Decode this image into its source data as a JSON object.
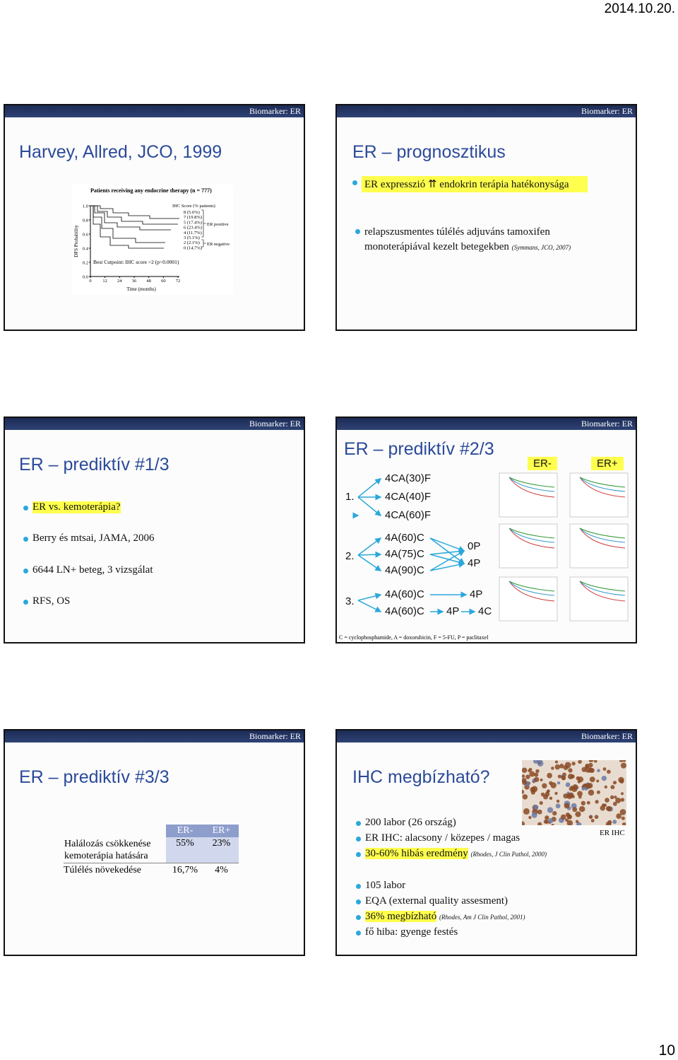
{
  "header": {
    "date": "2014.10.20."
  },
  "slides": [
    {
      "tag": "Biomarker: ER",
      "title": "Harvey, Allred, JCO, 1999",
      "figure": {
        "title": "Patients receiving any endocrine therapy (n = 777)",
        "legend_title": "IHC Score (% patients)",
        "legend": [
          "8 (5.6%)",
          "7 (19.8%)",
          "5 (17.4%)",
          "6 (23.4%)",
          "4 (11.7%)",
          "3 (5.1%)",
          "2 (2.1%)",
          "0 (14.7%)"
        ],
        "groups": [
          "ER positive",
          "ER negative"
        ],
        "y_label": "DFS Probability",
        "x_label": "Time (months)",
        "y_ticks": [
          "1.0",
          "0.8",
          "0.6",
          "0.4",
          "0.2",
          "0.0"
        ],
        "x_ticks": [
          "0",
          "12",
          "24",
          "36",
          "48",
          "60",
          "72"
        ],
        "note": "Best Cutpoint: IHC score >2 (p<0.0001)"
      }
    },
    {
      "tag": "Biomarker: ER",
      "title": "ER – prognosztikus",
      "bullets": [
        {
          "text": "ER expresszió ⇈ endokrin terápia hatékonysága"
        },
        {
          "text": "relapszusmentes túlélés adjuváns tamoxifen monoterápiával kezelt betegekben",
          "cite": "(Symmans, JCO, 2007)"
        }
      ]
    },
    {
      "tag": "Biomarker: ER",
      "title": "ER – prediktív #1/3",
      "bullets": [
        "ER vs. kemoterápia?",
        "Berry és mtsai, JAMA, 2006",
        "6644 LN+ beteg, 3 vizsgálat",
        "RFS, OS"
      ]
    },
    {
      "tag": "Biomarker: ER",
      "title": "ER – prediktív #2/3",
      "trials": [
        {
          "num": "1.",
          "arms": [
            "4CA(30)F",
            "4CA(40)F",
            "4CA(60)F"
          ]
        },
        {
          "num": "2.",
          "arms": [
            "4A(60)C",
            "4A(75)C",
            "4A(90)C"
          ],
          "then": [
            "0P",
            "4P"
          ]
        },
        {
          "num": "3.",
          "arms": [
            "4A(60)C",
            "4A(60)C"
          ],
          "seq": [
            "4P",
            "4P",
            "4C"
          ]
        }
      ],
      "labels": [
        "ER-",
        "ER+"
      ],
      "footnote": "C = cyclophosphamide, A = doxorubicin, F = 5-FU, P = paclitaxel"
    },
    {
      "tag": "Biomarker: ER",
      "title": "ER – prediktív #3/3",
      "table": {
        "header": [
          "ER-",
          "ER+"
        ],
        "rows": [
          [
            "Halálozás csökkenése kemoterápia hatására",
            "55%",
            "23%"
          ],
          [
            "Túlélés növekedése",
            "16,7%",
            "4%"
          ]
        ]
      }
    },
    {
      "tag": "Biomarker: ER",
      "title": "IHC megbízható?",
      "image_label": "ER IHC",
      "bullets": [
        {
          "text": "200 labor (26 ország)"
        },
        {
          "text": "ER IHC: alacsony / közepes / magas"
        },
        {
          "text": "30-60% hibás eredmény",
          "cite": "(Rhodes, J Clin Pathol, 2000)"
        },
        {
          "text": "105 labor"
        },
        {
          "text": "EQA (external quality assesment)"
        },
        {
          "text": "36% megbízható",
          "cite": "(Rhodes, Am J Clin Pathol, 2001)"
        },
        {
          "text": "fő hiba: gyenge festés"
        }
      ]
    }
  ],
  "footer": {
    "page": "10"
  }
}
